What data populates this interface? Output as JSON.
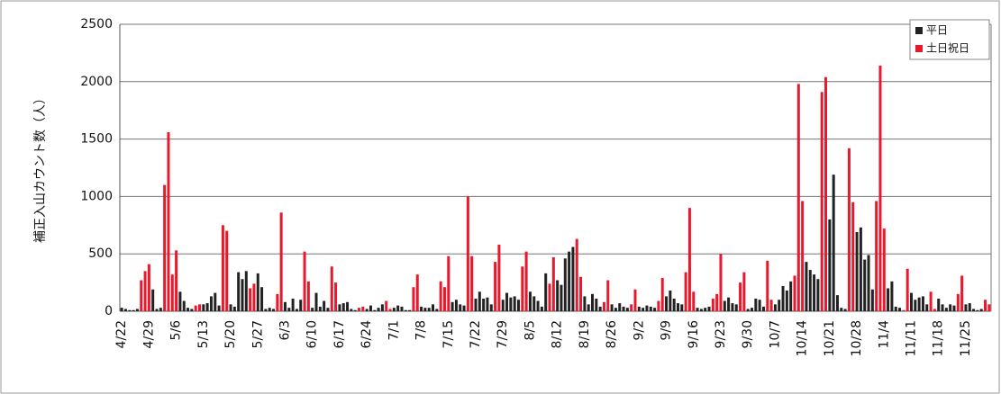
{
  "chart_data": {
    "type": "bar",
    "y_label": "補正入山カウント数（人）",
    "categories": [
      "4/22",
      null,
      null,
      null,
      null,
      null,
      null,
      "4/29",
      null,
      null,
      null,
      null,
      null,
      null,
      "5/6",
      null,
      null,
      null,
      null,
      null,
      null,
      "5/13",
      null,
      null,
      null,
      null,
      null,
      null,
      "5/20",
      null,
      null,
      null,
      null,
      null,
      null,
      "5/27",
      null,
      null,
      null,
      null,
      null,
      null,
      "6/3",
      null,
      null,
      null,
      null,
      null,
      null,
      "6/10",
      null,
      null,
      null,
      null,
      null,
      null,
      "6/17",
      null,
      null,
      null,
      null,
      null,
      null,
      "6/24",
      null,
      null,
      null,
      null,
      null,
      null,
      "7/1",
      null,
      null,
      null,
      null,
      null,
      null,
      "7/8",
      null,
      null,
      null,
      null,
      null,
      null,
      "7/15",
      null,
      null,
      null,
      null,
      null,
      null,
      "7/22",
      null,
      null,
      null,
      null,
      null,
      null,
      "7/29",
      null,
      null,
      null,
      null,
      null,
      null,
      "8/5",
      null,
      null,
      null,
      null,
      null,
      null,
      "8/12",
      null,
      null,
      null,
      null,
      null,
      null,
      "8/19",
      null,
      null,
      null,
      null,
      null,
      null,
      "8/26",
      null,
      null,
      null,
      null,
      null,
      null,
      "9/2",
      null,
      null,
      null,
      null,
      null,
      null,
      "9/9",
      null,
      null,
      null,
      null,
      null,
      null,
      "9/16",
      null,
      null,
      null,
      null,
      null,
      null,
      "9/23",
      null,
      null,
      null,
      null,
      null,
      null,
      "9/30",
      null,
      null,
      null,
      null,
      null,
      null,
      "10/7",
      null,
      null,
      null,
      null,
      null,
      null,
      "10/14",
      null,
      null,
      null,
      null,
      null,
      null,
      "10/21",
      null,
      null,
      null,
      null,
      null,
      null,
      "10/28",
      null,
      null,
      null,
      null,
      null,
      null,
      "11/4",
      null,
      null,
      null,
      null,
      null,
      null,
      "11/11",
      null,
      null,
      null,
      null,
      null,
      null,
      "11/18",
      null,
      null,
      null,
      null,
      null,
      null,
      "11/25",
      null,
      null,
      null,
      null,
      null,
      null
    ],
    "series": [
      {
        "name": "平日",
        "color": "#222222",
        "values": [
          30,
          20,
          10,
          10,
          20,
          null,
          null,
          null,
          190,
          20,
          30,
          null,
          null,
          null,
          null,
          170,
          90,
          30,
          20,
          null,
          null,
          60,
          70,
          130,
          160,
          50,
          null,
          null,
          60,
          40,
          340,
          280,
          350,
          null,
          null,
          330,
          210,
          20,
          30,
          20,
          null,
          null,
          80,
          30,
          110,
          20,
          100,
          null,
          null,
          30,
          160,
          40,
          90,
          30,
          null,
          null,
          60,
          70,
          80,
          20,
          10,
          null,
          null,
          20,
          50,
          10,
          30,
          60,
          null,
          null,
          30,
          50,
          40,
          10,
          10,
          null,
          null,
          40,
          30,
          30,
          60,
          20,
          null,
          null,
          null,
          80,
          100,
          60,
          50,
          null,
          null,
          110,
          170,
          110,
          120,
          60,
          null,
          null,
          100,
          160,
          120,
          130,
          100,
          null,
          null,
          170,
          130,
          90,
          40,
          330,
          null,
          null,
          270,
          230,
          460,
          520,
          560,
          null,
          null,
          130,
          60,
          150,
          110,
          40,
          null,
          null,
          60,
          30,
          70,
          40,
          30,
          null,
          null,
          40,
          30,
          50,
          40,
          30,
          null,
          null,
          130,
          180,
          110,
          70,
          60,
          null,
          null,
          null,
          30,
          20,
          30,
          40,
          null,
          null,
          null,
          90,
          120,
          70,
          60,
          null,
          null,
          20,
          30,
          110,
          100,
          40,
          null,
          null,
          60,
          100,
          220,
          180,
          260,
          null,
          null,
          null,
          430,
          360,
          320,
          280,
          null,
          null,
          800,
          1190,
          140,
          30,
          20,
          null,
          null,
          690,
          730,
          450,
          490,
          190,
          null,
          null,
          null,
          200,
          260,
          40,
          30,
          null,
          null,
          160,
          100,
          120,
          130,
          60,
          null,
          null,
          110,
          60,
          30,
          60,
          50,
          null,
          null,
          60,
          70,
          20,
          10,
          20,
          null,
          null
        ]
      },
      {
        "name": "土日祝日",
        "color": "#e8192c",
        "values": [
          null,
          null,
          null,
          null,
          null,
          270,
          350,
          410,
          null,
          null,
          null,
          1100,
          1560,
          320,
          530,
          null,
          null,
          null,
          null,
          50,
          60,
          null,
          null,
          null,
          null,
          null,
          750,
          700,
          null,
          null,
          null,
          null,
          null,
          200,
          240,
          null,
          null,
          null,
          null,
          null,
          150,
          860,
          null,
          null,
          null,
          null,
          null,
          520,
          260,
          null,
          null,
          null,
          null,
          null,
          390,
          250,
          null,
          null,
          null,
          null,
          null,
          30,
          40,
          null,
          null,
          null,
          null,
          null,
          90,
          20,
          null,
          null,
          null,
          null,
          null,
          210,
          320,
          null,
          null,
          null,
          null,
          null,
          260,
          210,
          480,
          null,
          null,
          null,
          null,
          1000,
          480,
          null,
          null,
          null,
          null,
          null,
          430,
          580,
          null,
          null,
          null,
          null,
          null,
          390,
          520,
          null,
          null,
          null,
          null,
          null,
          240,
          470,
          null,
          null,
          null,
          null,
          null,
          630,
          300,
          null,
          null,
          null,
          null,
          null,
          80,
          270,
          null,
          null,
          null,
          null,
          null,
          60,
          190,
          null,
          null,
          null,
          null,
          null,
          90,
          290,
          null,
          null,
          null,
          null,
          null,
          340,
          900,
          170,
          null,
          null,
          null,
          null,
          110,
          150,
          500,
          null,
          null,
          null,
          null,
          250,
          340,
          null,
          null,
          null,
          null,
          null,
          440,
          100,
          null,
          null,
          null,
          null,
          null,
          310,
          1980,
          960,
          null,
          null,
          null,
          null,
          1910,
          2040,
          null,
          null,
          null,
          null,
          null,
          1420,
          950,
          null,
          null,
          null,
          null,
          null,
          960,
          2140,
          720,
          null,
          null,
          null,
          null,
          10,
          370,
          null,
          null,
          null,
          null,
          null,
          170,
          20,
          null,
          null,
          null,
          null,
          null,
          150,
          310,
          null,
          null,
          null,
          null,
          null,
          100,
          60
        ]
      }
    ],
    "ylim": [
      0,
      2500
    ],
    "yticks": [
      0,
      500,
      1000,
      1500,
      2000,
      2500
    ],
    "grid": true,
    "legend": "top-right"
  }
}
